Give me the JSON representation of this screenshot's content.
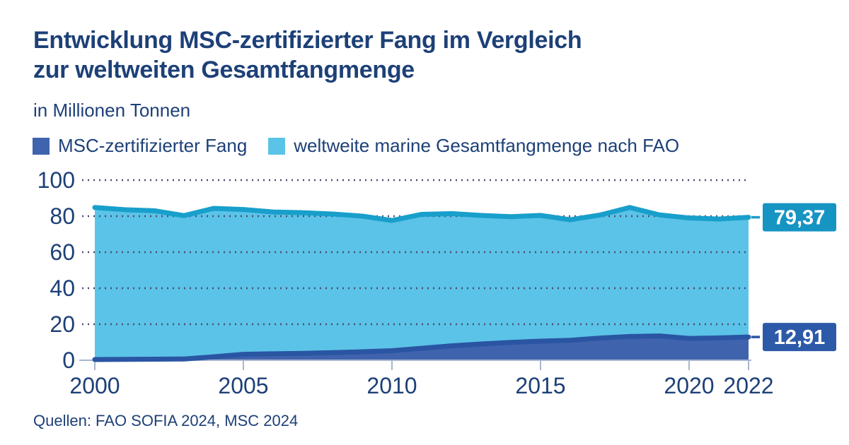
{
  "header": {
    "title_line1": "Entwicklung MSC-zertifizierter Fang im Vergleich",
    "title_line2": "zur weltweiten Gesamtfangmenge",
    "subtitle": "in Millionen Tonnen"
  },
  "legend": [
    {
      "label": "MSC-zertifizierter Fang",
      "color": "#4063ad"
    },
    {
      "label": "weltweite marine Gesamtfangmenge nach FAO",
      "color": "#5bc3e7"
    }
  ],
  "source": "Quellen: FAO SOFIA 2024, MSC 2024",
  "style": {
    "text_color": "#1d4077",
    "grid_color": "#4b4b74",
    "axis_color": "#a7b6cf",
    "background": "#ffffff"
  },
  "chart_data": {
    "type": "area",
    "title": "Entwicklung MSC-zertifizierter Fang im Vergleich zur weltweiten Gesamtfangmenge",
    "ylabel": "in Millionen Tonnen",
    "xlabel": "",
    "grid": "dotted-horizontal",
    "legend_position": "top",
    "xlim": [
      2000,
      2022
    ],
    "ylim": [
      0,
      100
    ],
    "xticks": [
      2000,
      2005,
      2010,
      2015,
      2020,
      2022
    ],
    "yticks": [
      0,
      20,
      40,
      60,
      80,
      100
    ],
    "x": [
      2000,
      2001,
      2002,
      2003,
      2004,
      2005,
      2006,
      2007,
      2008,
      2009,
      2010,
      2011,
      2012,
      2013,
      2014,
      2015,
      2016,
      2017,
      2018,
      2019,
      2020,
      2021,
      2022
    ],
    "series": [
      {
        "id": "fao",
        "name": "weltweite marine Gesamtfangmenge nach FAO",
        "values": [
          84.8,
          83.6,
          83.0,
          80.3,
          84.3,
          83.7,
          82.3,
          81.9,
          81.2,
          80.0,
          77.6,
          81.0,
          81.4,
          80.4,
          79.7,
          80.4,
          78.0,
          80.6,
          84.8,
          80.7,
          79.0,
          78.4,
          79.37
        ],
        "end_value": 79.37,
        "end_label": "79,37",
        "fill": "#5bc3e7",
        "stroke": "#189fcb",
        "badge": "#1695c3"
      },
      {
        "id": "msc",
        "name": "MSC-zertifizierter Fang",
        "values": [
          0.4,
          0.5,
          0.6,
          0.7,
          1.9,
          3.3,
          3.6,
          3.8,
          4.2,
          4.7,
          5.3,
          6.6,
          8.0,
          9.0,
          9.9,
          10.6,
          11.1,
          12.3,
          13.2,
          13.5,
          12.1,
          12.4,
          12.91
        ],
        "end_value": 12.91,
        "end_label": "12,91",
        "fill": "#4063ad",
        "stroke": "#2a55a3",
        "badge": "#2d5aa8"
      }
    ]
  }
}
